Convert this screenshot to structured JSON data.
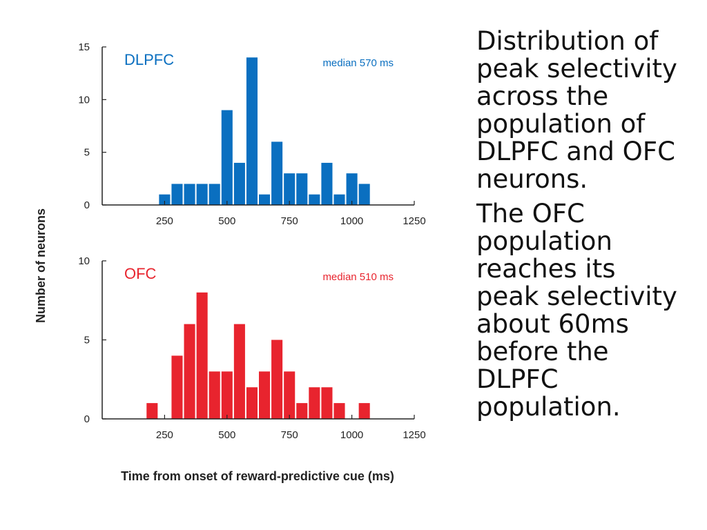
{
  "slide": {
    "paragraph1": "Distribution of\npeak selectivity\nacross  the\npopulation of\nDLPFC and OFC\nneurons.",
    "paragraph2": "The OFC\npopulation\nreaches its\npeak selectivity\nabout 60ms\nbefore the\nDLPFC\npopulation."
  },
  "chart_data": [
    {
      "type": "bar",
      "panel_label": "DLPFC",
      "annotation": "median 570 ms",
      "color": "#0a6fc0",
      "x": [
        250,
        300,
        350,
        400,
        450,
        500,
        550,
        600,
        650,
        700,
        750,
        800,
        850,
        900,
        950,
        1000,
        1050
      ],
      "values": [
        1,
        2,
        2,
        2,
        2,
        9,
        4,
        14,
        1,
        6,
        3,
        3,
        1,
        4,
        1,
        3,
        2
      ],
      "xlim": [
        0,
        1250
      ],
      "ylim": [
        0,
        15
      ],
      "xticks": [
        250,
        500,
        750,
        1000,
        1250
      ],
      "yticks": [
        0,
        5,
        10,
        15
      ],
      "grid": false
    },
    {
      "type": "bar",
      "panel_label": "OFC",
      "annotation": "median 510 ms",
      "color": "#e8242e",
      "x": [
        200,
        250,
        300,
        350,
        400,
        450,
        500,
        550,
        600,
        650,
        700,
        750,
        800,
        850,
        900,
        950,
        1000,
        1050
      ],
      "values": [
        1,
        0,
        4,
        6,
        8,
        3,
        3,
        6,
        2,
        3,
        5,
        3,
        1,
        2,
        2,
        1,
        0,
        1
      ],
      "xlim": [
        0,
        1250
      ],
      "ylim": [
        0,
        10
      ],
      "xticks": [
        250,
        500,
        750,
        1000,
        1250
      ],
      "yticks": [
        0,
        5,
        10
      ],
      "grid": false
    }
  ],
  "axes": {
    "ylabel": "Number of neurons",
    "xlabel": "Time from onset of reward-predictive cue (ms)"
  }
}
